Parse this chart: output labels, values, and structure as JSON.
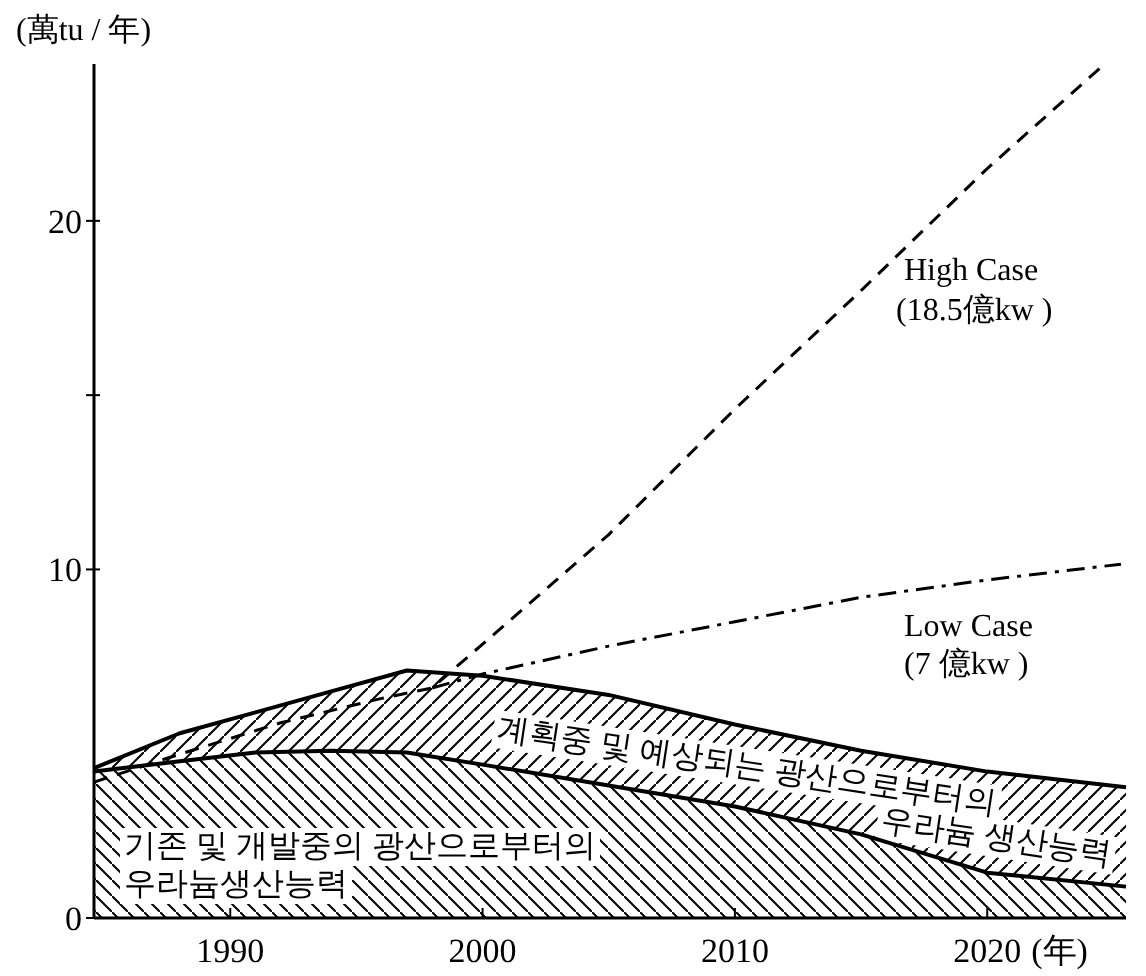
{
  "chart_data": {
    "type": "area",
    "stacked": true,
    "xlabel": "(年)",
    "ylabel": "(萬tu / 年)",
    "xlim": [
      1984.6,
      2025.5
    ],
    "ylim": [
      0,
      24.5
    ],
    "xticks": [
      1990,
      2000,
      2010,
      2020
    ],
    "yticks": [
      0,
      10,
      {
        "value": 15,
        "label": null
      },
      20
    ],
    "x": [
      1984.6,
      1988,
      1991,
      1994,
      1997,
      2000,
      2005,
      2010,
      2015,
      2020,
      2025.5
    ],
    "series": [
      {
        "name": "기존 및 개발중의 광산으로부터의\n우라늄생산능력",
        "type": "area",
        "color": "#000000",
        "values": [
          4.2,
          4.5,
          4.75,
          4.8,
          4.75,
          4.4,
          3.8,
          3.2,
          2.4,
          1.3,
          0.9
        ]
      },
      {
        "name": "계획중 및 예상되는 광산으로부터의\n우라늄 생산능력",
        "type": "area",
        "color": "#000000",
        "values": [
          0.1,
          0.8,
          1.15,
          1.7,
          2.35,
          2.55,
          2.6,
          2.35,
          2.4,
          2.9,
          2.85
        ]
      },
      {
        "name": "High Case\n(18.5億kw )",
        "type": "line",
        "line_style": "dashed",
        "color": "#000000",
        "x": [
          1984.6,
          1988,
          1992,
          1996,
          1998,
          2005,
          2010,
          2015,
          2020,
          2024.5
        ],
        "values": [
          3.9,
          4.7,
          5.6,
          6.3,
          6.6,
          11.0,
          14.6,
          18.0,
          21.5,
          24.4
        ]
      },
      {
        "name": "Low Case\n(7 億kw )",
        "type": "line",
        "line_style": "dashdot",
        "color": "#000000",
        "x": [
          1998,
          2000,
          2005,
          2010,
          2015,
          2020,
          2025.3
        ],
        "values": [
          6.6,
          7.0,
          7.8,
          8.5,
          9.2,
          9.7,
          10.15
        ]
      }
    ]
  }
}
